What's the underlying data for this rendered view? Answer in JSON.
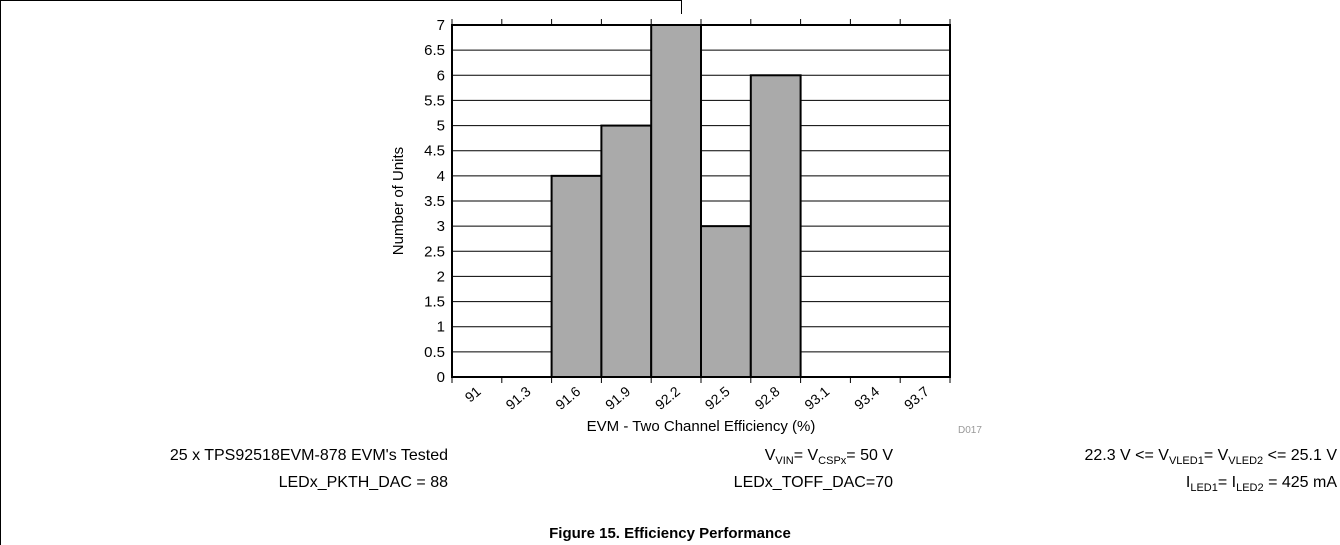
{
  "chart_data": {
    "type": "bar",
    "title": "",
    "xlabel": "EVM - Two Channel Efficiency (%)",
    "ylabel": "Number of Units",
    "categories": [
      "91",
      "91.3",
      "91.6",
      "91.9",
      "92.2",
      "92.5",
      "92.8",
      "93.1",
      "93.4",
      "93.7"
    ],
    "values": [
      0,
      0,
      4,
      5,
      7,
      3,
      6,
      0,
      0,
      0
    ],
    "ylim": [
      0,
      7
    ],
    "yticks": [
      "0",
      "0.5",
      "1",
      "1.5",
      "2",
      "2.5",
      "3",
      "3.5",
      "4",
      "4.5",
      "5",
      "5.5",
      "6",
      "6.5",
      "7"
    ],
    "grid": true,
    "bar_color": "#aaaaaa",
    "figure_id": "D017"
  },
  "notes": {
    "tested": "25 x TPS92518EVM-878 EVM's Tested",
    "pkth": "LEDx_PKTH_DAC = 88",
    "vin": {
      "a": "V",
      "a_sub": "VIN",
      "b": "= V",
      "b_sub": "CSPx",
      "c": "= 50 V"
    },
    "toff": "LEDx_TOFF_DAC=70",
    "vled": {
      "a": "22.3 V <= V",
      "a_sub": "VLED1",
      "b": "= V",
      "b_sub": "VLED2",
      "c": " <= 25.1 V"
    },
    "iled": {
      "a": "I",
      "a_sub": "LED1",
      "b": "= I",
      "b_sub": "LED2",
      "c": " = 425 mA"
    }
  },
  "caption": "Figure 15. Efficiency Performance"
}
